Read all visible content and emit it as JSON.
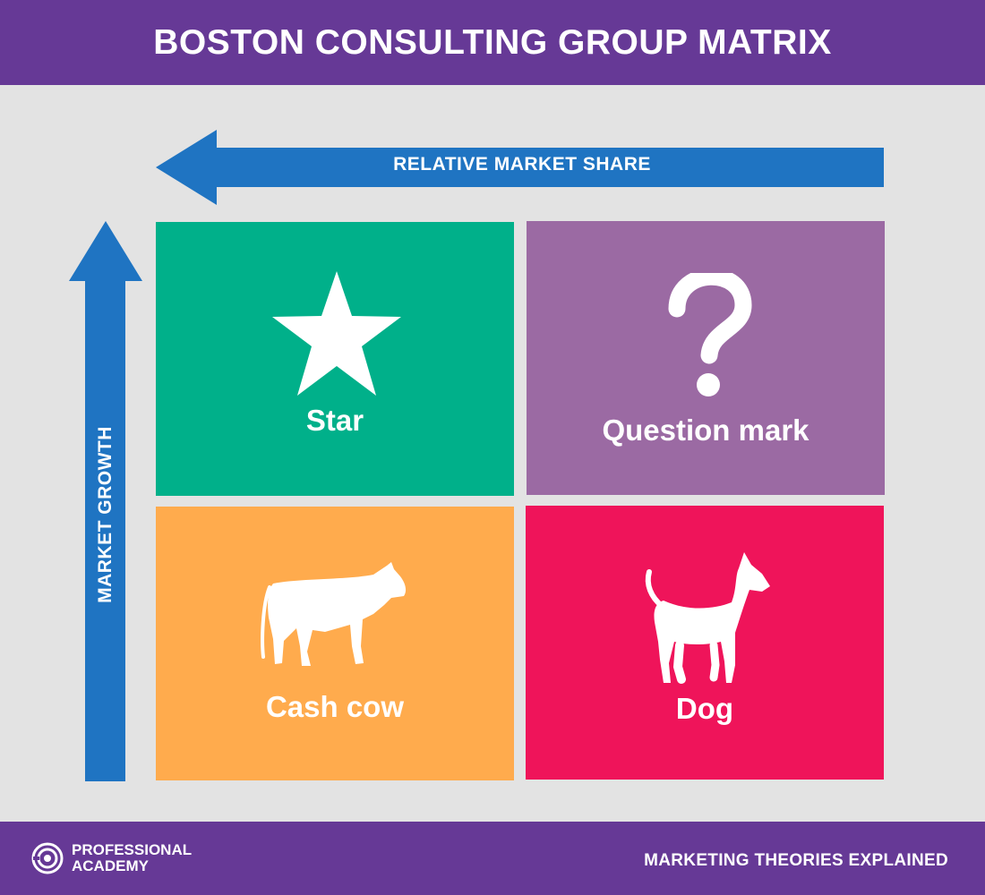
{
  "header": {
    "title": "BOSTON CONSULTING GROUP MATRIX",
    "background": "#663996"
  },
  "axes": {
    "horizontal_label": "RELATIVE MARKET SHARE",
    "vertical_label": "MARKET GROWTH",
    "arrow_color": "#1f74c2"
  },
  "quadrants": [
    {
      "label": "Star",
      "icon": "star-icon",
      "color": "#00b08a"
    },
    {
      "label": "Question mark",
      "icon": "question-mark-icon",
      "color": "#9b6aa3"
    },
    {
      "label": "Cash cow",
      "icon": "cow-icon",
      "color": "#ffab4d"
    },
    {
      "label": "Dog",
      "icon": "dog-icon",
      "color": "#ef145a"
    }
  ],
  "footer": {
    "brand_line_1": "PROFESSIONAL",
    "brand_line_2": "ACADEMY",
    "brand_icon": "professional-academy-logo-icon",
    "tagline": "MARKETING THEORIES EXPLAINED"
  }
}
